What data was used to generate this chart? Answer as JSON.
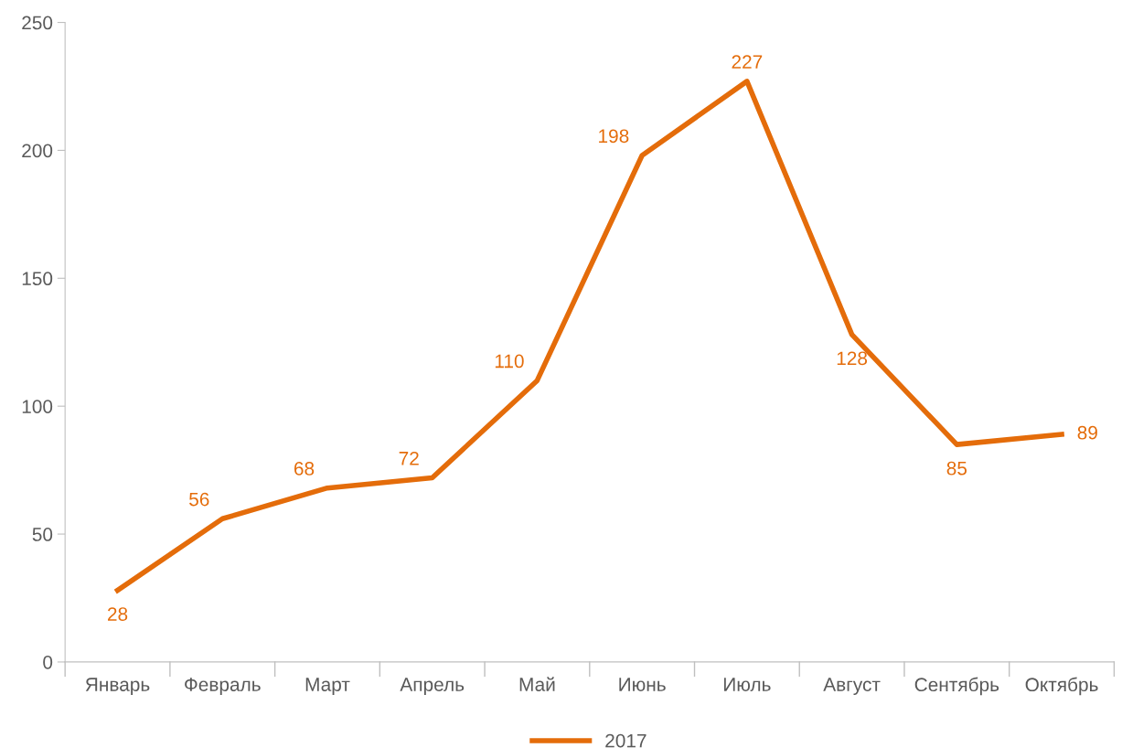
{
  "chart_data": {
    "type": "line",
    "categories": [
      "Январь",
      "Февраль",
      "Март",
      "Апрель",
      "Май",
      "Июнь",
      "Июль",
      "Август",
      "Сентябрь",
      "Октябрь"
    ],
    "series": [
      {
        "name": "2017",
        "color": "#e46c0a",
        "values": [
          28,
          56,
          68,
          72,
          110,
          198,
          227,
          128,
          85,
          89
        ]
      }
    ],
    "ylim": [
      0,
      250
    ],
    "yticks": [
      0,
      50,
      100,
      150,
      200,
      250
    ],
    "grid": false,
    "legend": "bottom",
    "data_labels": true,
    "marker": "none",
    "line_style": "solid"
  }
}
